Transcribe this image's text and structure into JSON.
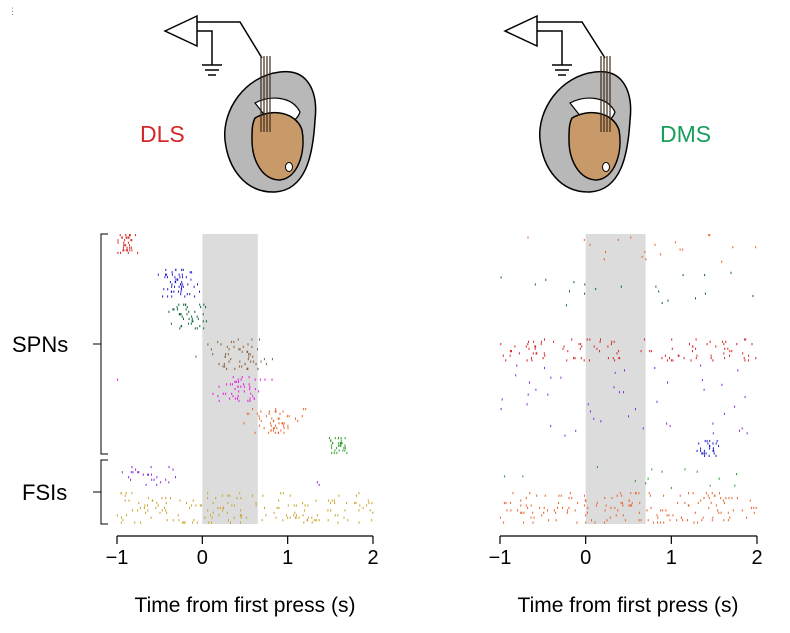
{
  "colors": {
    "dls": "#d62728",
    "dms": "#1a9e5c",
    "shade": "#dcdcdc",
    "brain": "#b8b8b8",
    "striatum": "#c89a6a",
    "unit_colors": [
      "#d62728",
      "#1f1fcc",
      "#0f6b3a",
      "#8b5e34",
      "#e619e6",
      "#e8642a",
      "#2ca02c",
      "#8a2be2",
      "#c9a227"
    ]
  },
  "chart_data": [
    {
      "type": "raster",
      "region_label": "DLS",
      "xlabel": "Time from first press (s)",
      "xlim": [
        -1,
        2
      ],
      "xticks": [
        "−1",
        "0",
        "1",
        "2"
      ],
      "xtick_values": [
        -1,
        0,
        1,
        2
      ],
      "shaded_interval": [
        0,
        0.65
      ],
      "groups": [
        {
          "label": "SPNs",
          "row_range": [
            0,
            0.76
          ]
        },
        {
          "label": "FSIs",
          "row_range": [
            0.8,
            1.0
          ]
        }
      ],
      "units": [
        {
          "color": "#d62728",
          "burst_center": -0.9,
          "burst_width": 0.18,
          "rows": [
            0.0,
            0.07
          ]
        },
        {
          "color": "#1f1fcc",
          "burst_center": -0.3,
          "burst_width": 0.35,
          "rows": [
            0.12,
            0.22
          ]
        },
        {
          "color": "#0f6b3a",
          "burst_center": -0.15,
          "burst_width": 0.3,
          "rows": [
            0.24,
            0.33
          ]
        },
        {
          "color": "#8b5e34",
          "burst_center": 0.4,
          "burst_width": 0.5,
          "rows": [
            0.36,
            0.47
          ]
        },
        {
          "color": "#e619e6",
          "burst_center": 0.5,
          "burst_width": 0.4,
          "rows": [
            0.49,
            0.58
          ]
        },
        {
          "color": "#e8642a",
          "burst_center": 0.85,
          "burst_width": 0.45,
          "rows": [
            0.6,
            0.69
          ]
        },
        {
          "color": "#2ca02c",
          "burst_center": 1.6,
          "burst_width": 0.15,
          "rows": [
            0.7,
            0.76
          ]
        },
        {
          "color": "#8a2be2",
          "burst_center": -0.7,
          "burst_width": 0.6,
          "rows": [
            0.8,
            0.87
          ]
        },
        {
          "color": "#c9a227",
          "burst_center": 0.5,
          "burst_width": 3.0,
          "rows": [
            0.89,
            1.0
          ]
        }
      ]
    },
    {
      "type": "raster",
      "region_label": "DMS",
      "xlabel": "Time from first press (s)",
      "xlim": [
        -1,
        2
      ],
      "xticks": [
        "−1",
        "0",
        "1",
        "2"
      ],
      "xtick_values": [
        -1,
        0,
        1,
        2
      ],
      "shaded_interval": [
        0,
        0.7
      ],
      "units": [
        {
          "color": "#e8642a",
          "burst_center": 0.5,
          "burst_width": 3.0,
          "rows": [
            0.0,
            0.1
          ],
          "sparse": true
        },
        {
          "color": "#0f6b3a",
          "burst_center": 0.5,
          "burst_width": 3.0,
          "rows": [
            0.13,
            0.25
          ],
          "sparse": true
        },
        {
          "color": "#d62728",
          "burst_center": 0.5,
          "burst_width": 3.0,
          "rows": [
            0.36,
            0.44
          ],
          "sparse": false
        },
        {
          "color": "#8a2be2",
          "burst_center": 0.5,
          "burst_width": 3.0,
          "rows": [
            0.45,
            0.7
          ],
          "sparse": true
        },
        {
          "color": "#1f1fcc",
          "burst_center": 1.45,
          "burst_width": 0.2,
          "rows": [
            0.71,
            0.77
          ]
        },
        {
          "color": "#2ca02c",
          "burst_center": 0.5,
          "burst_width": 3.0,
          "rows": [
            0.8,
            0.88
          ],
          "sparse": true
        },
        {
          "color": "#e8642a",
          "burst_center": 0.5,
          "burst_width": 3.0,
          "rows": [
            0.89,
            1.0
          ],
          "sparse": false
        }
      ]
    }
  ]
}
